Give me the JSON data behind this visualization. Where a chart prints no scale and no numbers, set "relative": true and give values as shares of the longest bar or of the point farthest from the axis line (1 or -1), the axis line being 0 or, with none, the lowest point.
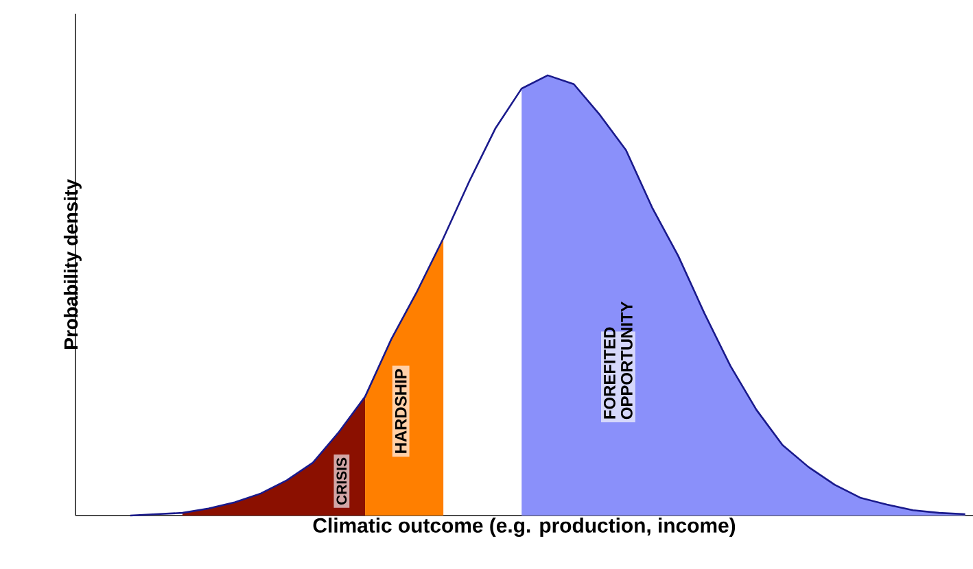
{
  "chart_data": {
    "type": "area",
    "relative": true,
    "xlabel": "Climatic outcome (e.g. production, income)",
    "ylabel": "Probability density",
    "categories": [
      null,
      null,
      null,
      null,
      null,
      null,
      null,
      null,
      null,
      null,
      null,
      null,
      null,
      null,
      null,
      null,
      null,
      null,
      null,
      null,
      null,
      null,
      null,
      null,
      null,
      null,
      null,
      null,
      null,
      null,
      null,
      null,
      null
    ],
    "series": [
      {
        "color": "#8b1000",
        "values": [
          null,
          null,
          0.006,
          0.016,
          0.03,
          0.05,
          0.08,
          0.12,
          0.19,
          0.27,
          null,
          null,
          null,
          null,
          null,
          null,
          null,
          null,
          null,
          null,
          null,
          null,
          null,
          null,
          null,
          null,
          null,
          null,
          null,
          null,
          null,
          null,
          null
        ]
      },
      {
        "color": "#ff7f00",
        "values": [
          null,
          null,
          null,
          null,
          null,
          null,
          null,
          null,
          null,
          0.27,
          0.4,
          0.51,
          0.63,
          null,
          null,
          null,
          null,
          null,
          null,
          null,
          null,
          null,
          null,
          null,
          null,
          null,
          null,
          null,
          null,
          null,
          null,
          null,
          null
        ]
      },
      {
        "color": "#8a90fa",
        "values": [
          null,
          null,
          null,
          null,
          null,
          null,
          null,
          null,
          null,
          null,
          null,
          null,
          null,
          null,
          null,
          0.97,
          1.0,
          0.98,
          0.91,
          0.83,
          0.7,
          0.59,
          0.46,
          0.34,
          0.24,
          0.16,
          0.11,
          0.07,
          0.04,
          0.025,
          0.012,
          0.006,
          0.003
        ]
      },
      {
        "type": "line",
        "color": "#1a1a8c",
        "values": [
          0,
          0.003,
          0.006,
          0.016,
          0.03,
          0.05,
          0.08,
          0.12,
          0.19,
          0.27,
          0.4,
          0.51,
          0.63,
          0.76,
          0.88,
          0.97,
          1.0,
          0.98,
          0.91,
          0.83,
          0.7,
          0.59,
          0.46,
          0.34,
          0.24,
          0.16,
          0.11,
          0.07,
          0.04,
          0.025,
          0.012,
          0.006,
          0.003
        ]
      }
    ],
    "annotations": [
      "CRISIS",
      "HARDSHIP",
      "FOREFITED OPPORTUNITY"
    ]
  }
}
